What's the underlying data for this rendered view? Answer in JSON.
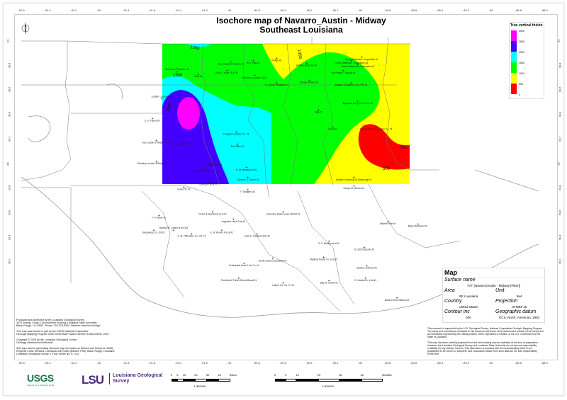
{
  "title": {
    "line1": "Isochore map of Navarro_Austin - Midway",
    "line2": "Southeast Louisiana"
  },
  "axes": {
    "lon_labels": [
      "-92.6",
      "-92.4",
      "-92.2",
      "-92",
      "-91.8",
      "-91.6",
      "-91.4",
      "-91.2",
      "-91",
      "-90.8",
      "-90.6",
      "-90.4",
      "-90.2",
      "-90",
      "-89.8",
      "-89.6",
      "-89.4",
      "-89.2",
      "-89",
      "-88.8",
      "-88.6"
    ],
    "lat_labels": [
      "31",
      "30.8",
      "30.6",
      "30.4",
      "30.2",
      "30",
      "29.8",
      "29.6",
      "29.4",
      "29.2"
    ]
  },
  "legend": {
    "title": "True vertical thickn",
    "levels": [
      "3000",
      "2500",
      "2000",
      "1500",
      "1000",
      "500",
      "0"
    ],
    "colors": [
      "#ff00ff",
      "#4400ff",
      "#00ffff",
      "#00ff00",
      "#ffff00",
      "#ff0000"
    ]
  },
  "contours": {
    "interval": 500,
    "labels": [
      "1500",
      "1500",
      "2000",
      "1000",
      "500",
      "500"
    ]
  },
  "wells": [
    {
      "name": "Boy Scouts of America #1",
      "lon": -91.0,
      "lat": 30.83
    },
    {
      "name": "Bob R. Jones \"A-8\" #1",
      "lon": -91.03,
      "lat": 30.76
    },
    {
      "name": "W. E. Day #1",
      "lon": -90.83,
      "lat": 30.84
    },
    {
      "name": "Phillips #1",
      "lon": -90.65,
      "lat": 30.86
    },
    {
      "name": "Newsbury Lumber Co #1",
      "lon": -90.82,
      "lat": 30.72
    },
    {
      "name": "K. Claude Plantation #1",
      "lon": -90.65,
      "lat": 30.66
    },
    {
      "name": "Andrew Bros et al #1",
      "lon": -90.42,
      "lat": 30.82
    },
    {
      "name": "Murphy Ruhner #1",
      "lon": -90.4,
      "lat": 30.68
    },
    {
      "name": "Crown Zellerbach Corporation #1",
      "lon": -90.0,
      "lat": 30.87
    },
    {
      "name": "Crown Zellerbach Corporation #3",
      "lon": -90.08,
      "lat": 30.84
    },
    {
      "name": "Crown Zellerbach Corporation #2",
      "lon": -90.03,
      "lat": 30.81
    },
    {
      "name": "Mrs Pansie T. Brooks #1",
      "lon": -90.14,
      "lat": 30.76
    },
    {
      "name": "Bayland Container Corp. Fee #1",
      "lon": -90.08,
      "lat": 30.66
    },
    {
      "name": "Bogalusa Tung Oil Co. Inc. #1",
      "lon": -90.03,
      "lat": 30.51
    },
    {
      "name": "Sally #1",
      "lon": -90.33,
      "lat": 30.44
    },
    {
      "name": "Robertson Plantation #1",
      "lon": -91.41,
      "lat": 30.75
    },
    {
      "name": "Mobil #1",
      "lon": -91.25,
      "lat": 30.73
    },
    {
      "name": "Lobdell - Lejeune #1",
      "lon": -91.53,
      "lat": 30.53
    },
    {
      "name": "E. G. Hynes #1",
      "lon": -91.6,
      "lat": 30.37
    },
    {
      "name": "J. B. Williams et al #1",
      "lon": -91.37,
      "lat": 30.18
    },
    {
      "name": "Inez Lupton & Wright Co. #2",
      "lon": -91.57,
      "lat": 30.19
    },
    {
      "name": "Schenley Lumber & Bridge Co. Inc. #2",
      "lon": -91.57,
      "lat": 30.02
    },
    {
      "name": "J. B. Stagleman #1",
      "lon": -91.14,
      "lat": 30.01
    },
    {
      "name": "Lula B. Stark Co. Inc. #1",
      "lon": -91.19,
      "lat": 29.96
    },
    {
      "name": "Georgia Pacific #1",
      "lon": -91.17,
      "lat": 29.85
    },
    {
      "name": "Earl Miller #1",
      "lon": -90.95,
      "lat": 30.16
    },
    {
      "name": "Livingston Lumber Co. #1",
      "lon": -90.96,
      "lat": 30.26
    },
    {
      "name": "E. de Marsay et al #1",
      "lon": -90.88,
      "lat": 29.97
    },
    {
      "name": "Clarence G. Boyce #1",
      "lon": -90.87,
      "lat": 29.89
    },
    {
      "name": "Cooks \"A\" #1",
      "lon": -91.36,
      "lat": 29.81
    },
    {
      "name": "F. Sturgeon #1",
      "lon": -90.87,
      "lat": 29.79
    },
    {
      "name": "Davis #1",
      "lon": -90.22,
      "lat": 30.3
    },
    {
      "name": "Richard & Pierce Lumber Co. #1",
      "lon": -89.89,
      "lat": 30.3
    },
    {
      "name": "Humble Faubourg De Montrouge #1",
      "lon": -90.06,
      "lat": 29.89
    },
    {
      "name": "Joseph M. Mexius #1",
      "lon": -90.06,
      "lat": 29.82
    },
    {
      "name": "Lafourche Basin Levee District #1",
      "lon": -90.6,
      "lat": 29.61
    },
    {
      "name": "Cortez & Siverstone et al #1",
      "lon": -91.14,
      "lat": 29.61
    },
    {
      "name": "Legendre Land Corp #1",
      "lon": -90.98,
      "lat": 29.55
    },
    {
      "name": "F. P. Boyer #1",
      "lon": -91.55,
      "lat": 29.58
    },
    {
      "name": "Burguieres Co. Ltd #1",
      "lon": -91.59,
      "lat": 29.46
    },
    {
      "name": "Florence R. Cotten et al #1-B",
      "lon": -91.44,
      "lat": 29.46
    },
    {
      "name": "C. M. Thibodaux Co. Ltd. #1",
      "lon": -91.3,
      "lat": 29.43
    },
    {
      "name": "E. W. Brown Jr et al #1",
      "lon": -91.07,
      "lat": 29.46
    },
    {
      "name": "Louis E. Gaubert Heirs #1",
      "lon": -90.8,
      "lat": 29.43
    },
    {
      "name": "Continental Land & Fur Co. #1",
      "lon": -90.9,
      "lat": 29.19
    },
    {
      "name": "South Coast Corporation #1",
      "lon": -90.68,
      "lat": 29.23
    },
    {
      "name": "Terrebonne Parish School Board #1",
      "lon": -90.94,
      "lat": 29.07
    },
    {
      "name": "Laterre Co. Inc \"C\" #1",
      "lon": -90.6,
      "lat": 29.03
    },
    {
      "name": "E. P. Bradley et al #2",
      "lon": -90.25,
      "lat": 29.37
    },
    {
      "name": "Madison Realty Co. et al #1",
      "lon": -90.29,
      "lat": 29.24
    },
    {
      "name": "Bay De Chene #1",
      "lon": -90.25,
      "lat": 29.05
    },
    {
      "name": "SL 330 Delacroix #1",
      "lon": -89.98,
      "lat": 29.32
    },
    {
      "name": "Braxton Johnson #1",
      "lon": -89.96,
      "lat": 29.17
    },
    {
      "name": "E. Cockrell Jr. et al #1",
      "lon": -89.97,
      "lat": 29.07
    },
    {
      "name": "Alliance Rice #1",
      "lon": -89.8,
      "lat": 29.53
    },
    {
      "name": "Milan Marshland #1",
      "lon": -89.57,
      "lat": 29.51
    },
    {
      "name": "Buras Levee District #12",
      "lon": -89.73,
      "lat": 28.91
    }
  ],
  "map_box": {
    "title": "Map",
    "surface_name_label": "Surface name",
    "surface_name": "TVT (Navarro/Austin - Midway [Filter])",
    "area_label": "Area",
    "area": "SE Louisiana",
    "unit_label": "Unit",
    "unit": "feet",
    "country_label": "Country",
    "country": "United States",
    "projection_label": "Projection",
    "projection": "UTM83-15",
    "contour_label": "Contour inc",
    "contour": "500",
    "datum_label": "Geographic datum",
    "datum": "GCS_North_American_1983"
  },
  "notes_left": [
    "Produced and published by the Louisiana Geological Survey",
    "3079 Energy, Coast & Environment Building, Louisiana State University",
    "Baton Rouge, LA 70803. Phone: 225-578-5320. Website: www.lsu.edu/lgs/",
    "",
    "This map was funded in part by the USGS National Cooperative",
    "Geologic Mapping Program under STATEMAP award number G24AC00000, 2024",
    "",
    "Copyright © 2025 by the Louisiana Geological Survey",
    "Geology: Akinbobola Akinbonide",
    "",
    "Well tops used in generating structure map are based on Bebout and Gutierrez (1983)",
    "Regional Cross Sections, Louisiana Gulf Coast (Eastern Part). Baton Rouge, Louisiana",
    "Louisiana Geological Survey. v. Folio Series No. 6, 10 p."
  ],
  "notes_right": [
    "This research is supported by the U.S. Geological Survey, National Cooperative Geologic Mapping Program.",
    "The views and conclusions contained in this document are those of the authors and should not be interpreted",
    "as necessarily representing the official policies, either expressed or implied, of the U.S. Government or the",
    "State of Louisiana.",
    "",
    "This map has been carefully prepared from the best existing sources available at the time of preparation.",
    "However, the Louisiana Geological Survey and Louisiana State University do not assume responsibility",
    "or liability for any reliance thereon. This information is provided with the understanding that it is not",
    "guaranteed to be correct or complete, and conclusions drawn from such data are the sole responsibility",
    "of the user."
  ],
  "logos": {
    "usgs": "USGS",
    "usgs_tagline": "science for a changing world",
    "lsu": "LSU",
    "lgs_line1": "Louisiana Geological",
    "lgs_line2": "Survey"
  },
  "scalebars": [
    {
      "labels": [
        "0",
        "5",
        "10",
        "20",
        "30",
        "40",
        "50km"
      ],
      "ratio": "1:300000"
    },
    {
      "labels": [
        "0",
        "5",
        "10",
        "20",
        "30",
        "40",
        "50miles"
      ],
      "ratio": "1:300000"
    }
  ],
  "compass": "N"
}
